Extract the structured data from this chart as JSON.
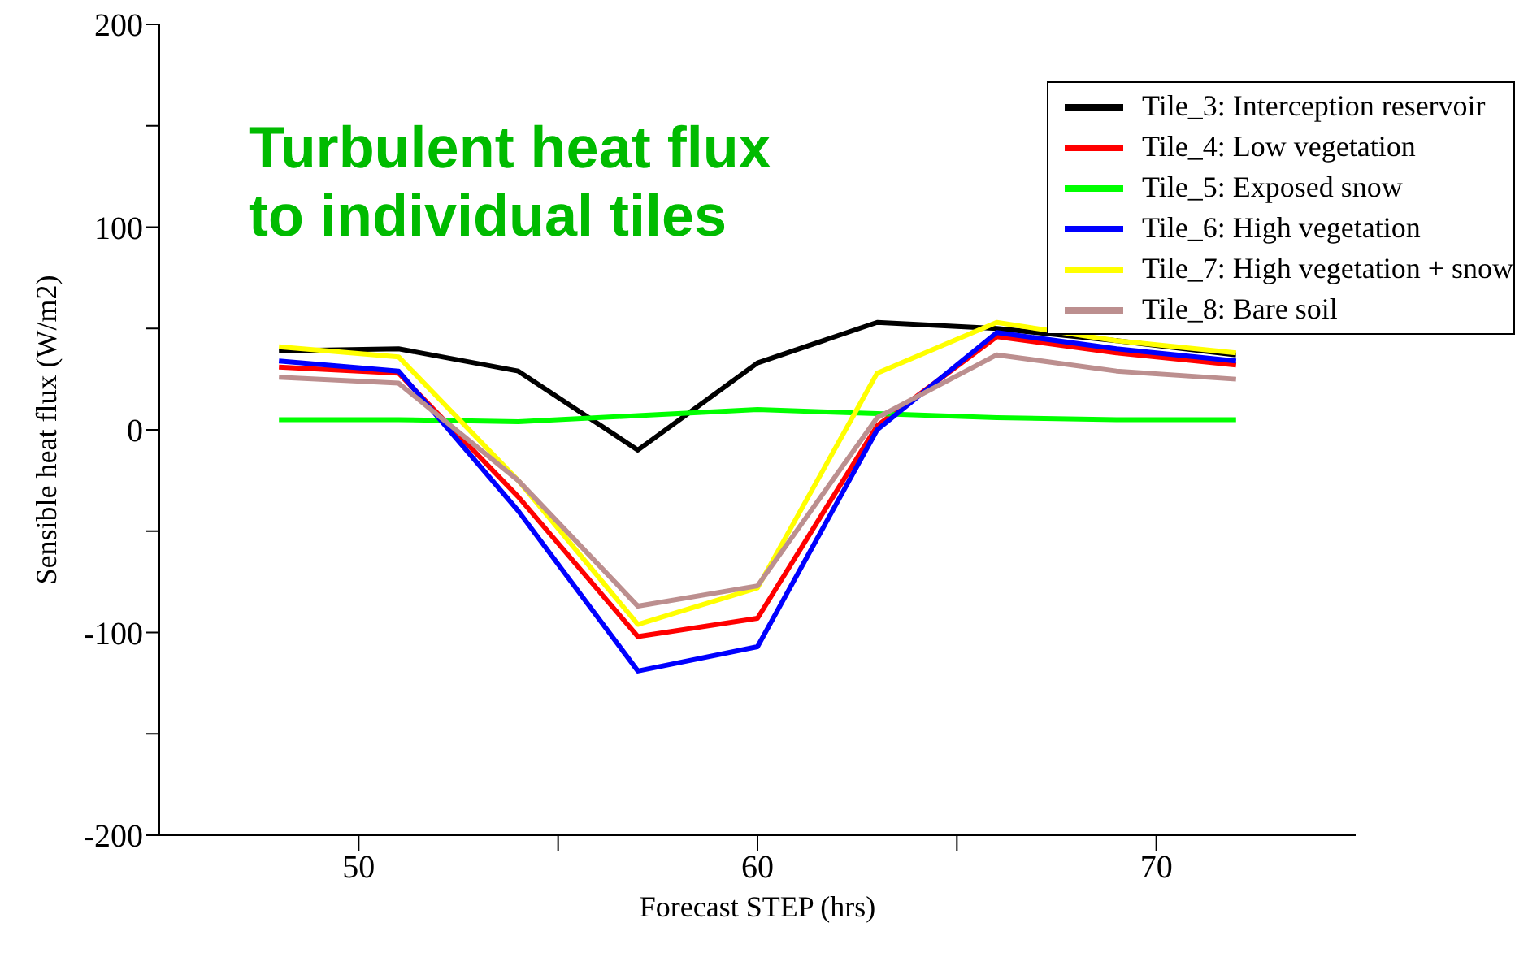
{
  "chart_data": {
    "type": "line",
    "xlabel": "Forecast STEP (hrs)",
    "ylabel": "Sensible heat flux (W/m2)",
    "annotations": [
      "Turbulent heat flux to individual tiles"
    ],
    "x": [
      48,
      51,
      54,
      57,
      60,
      63,
      66,
      69,
      72
    ],
    "xlim": [
      45,
      75
    ],
    "xticks": [
      50,
      {
        "value": 55,
        "label": null
      },
      60,
      {
        "value": 65,
        "label": null
      },
      70
    ],
    "ylim": [
      -200,
      200
    ],
    "yticks": [
      -200,
      {
        "value": -150,
        "label": null
      },
      -100,
      {
        "value": -50,
        "label": null
      },
      0,
      {
        "value": 50,
        "label": null
      },
      100,
      {
        "value": 150,
        "label": null
      },
      200
    ],
    "grid": false,
    "legend": "top right",
    "marker": "none",
    "line_style": "solid",
    "series": [
      {
        "name": "Tile_3: Interception reservoir",
        "color": "#000000",
        "values": [
          39,
          40,
          29,
          -10,
          33,
          53,
          50,
          44,
          37
        ]
      },
      {
        "name": "Tile_4: Low vegetation",
        "color": "#ff0000",
        "values": [
          31,
          28,
          -33,
          -102,
          -93,
          2,
          46,
          38,
          32
        ]
      },
      {
        "name": "Tile_5: Exposed snow",
        "color": "#00ff00",
        "values": [
          5,
          5,
          4,
          7,
          10,
          8,
          6,
          5,
          5
        ]
      },
      {
        "name": "Tile_6: High vegetation",
        "color": "#0000ff",
        "values": [
          34,
          29,
          -40,
          -119,
          -107,
          0,
          48,
          40,
          34
        ]
      },
      {
        "name": "Tile_7: High vegetation + snow",
        "color": "#ffff00",
        "values": [
          41,
          36,
          -25,
          -96,
          -78,
          28,
          53,
          44,
          38
        ]
      },
      {
        "name": "Tile_8: Bare soil",
        "color": "#bc8f8f",
        "values": [
          26,
          23,
          -25,
          -87,
          -77,
          6,
          37,
          29,
          25
        ]
      }
    ]
  }
}
